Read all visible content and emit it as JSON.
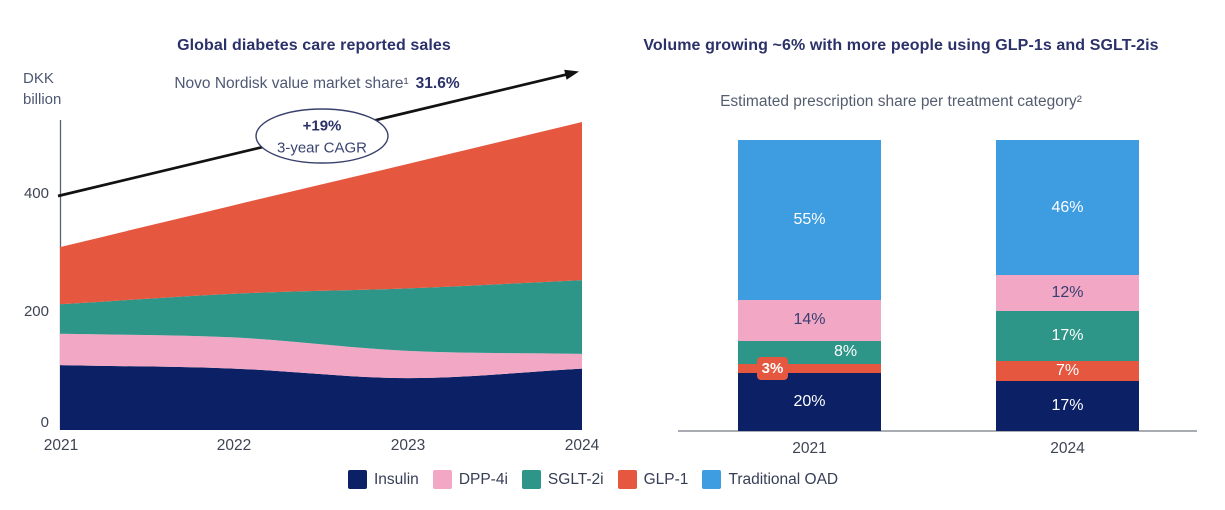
{
  "chart_data": [
    {
      "id": "diabetes-sales-area",
      "type": "area",
      "stacked": true,
      "title": "Global diabetes care reported sales",
      "ylabel_lines": [
        "DKK",
        "billion"
      ],
      "x": [
        "2021",
        "2022",
        "2023",
        "2024"
      ],
      "yticks": [
        "0",
        "200",
        "400"
      ],
      "ytick_values": [
        0,
        200,
        400
      ],
      "ylim": [
        0,
        560
      ],
      "grid": false,
      "legend_position": "bottom-shared",
      "series": [
        {
          "name": "Insulin",
          "color": "#0B2065",
          "values": [
            110,
            104,
            88,
            104
          ]
        },
        {
          "name": "DPP-4i",
          "color": "#F2A8C4",
          "values": [
            53,
            53,
            46,
            25
          ]
        },
        {
          "name": "SGLT-2i",
          "color": "#2E9589",
          "values": [
            50,
            74,
            106,
            125
          ]
        },
        {
          "name": "GLP-1",
          "color": "#E5573E",
          "values": [
            97,
            150,
            211,
            268
          ]
        }
      ],
      "totals_dkk_bn": [
        310,
        381,
        451,
        522
      ],
      "annotations": {
        "trend_label_regular": "Novo Nordisk value market share¹",
        "trend_label_bold": "31.6%",
        "badge_top": "+19%",
        "badge_bottom": "3-year CAGR",
        "arrow_color": "#121212"
      }
    },
    {
      "id": "prescription-share-bars",
      "type": "bar",
      "stacked": true,
      "title": "Volume growing ~6% with more people using GLP-1s and SGLT-2is",
      "subtitle": "Estimated prescription share per treatment category²",
      "categories": [
        "2021",
        "2024"
      ],
      "unit": "%",
      "series": [
        {
          "name": "Insulin",
          "color": "#0B2065",
          "values": [
            20,
            17
          ],
          "labels": [
            "20%",
            "17%"
          ],
          "label_colors": [
            "#FFFFFF",
            "#FFFFFF"
          ]
        },
        {
          "name": "GLP-1",
          "color": "#E5573E",
          "values": [
            3,
            7
          ],
          "labels": [
            "3%",
            "7%"
          ],
          "label_colors": [
            "#FFFFFF",
            "#FFFFFF"
          ],
          "label_style": [
            "callout",
            null
          ]
        },
        {
          "name": "SGLT-2i",
          "color": "#2E9589",
          "values": [
            8,
            17
          ],
          "labels": [
            "8%",
            "17%"
          ],
          "label_colors": [
            "#FFFFFF",
            "#FFFFFF"
          ],
          "label_dx": [
            36,
            0
          ]
        },
        {
          "name": "DPP-4i",
          "color": "#F2A8C4",
          "values": [
            14,
            12
          ],
          "labels": [
            "14%",
            "12%"
          ],
          "label_colors": [
            "#383E72",
            "#383E72"
          ]
        },
        {
          "name": "Traditional OAD",
          "color": "#3E9CE1",
          "values": [
            55,
            46
          ],
          "labels": [
            "55%",
            "46%"
          ],
          "label_colors": [
            "#FFFFFF",
            "#FFFFFF"
          ]
        }
      ]
    }
  ],
  "legend": {
    "items": [
      {
        "label": "Insulin",
        "color": "#0B2065"
      },
      {
        "label": "DPP-4i",
        "color": "#F2A8C4"
      },
      {
        "label": "SGLT-2i",
        "color": "#2E9589"
      },
      {
        "label": "GLP-1",
        "color": "#E5573E"
      },
      {
        "label": "Traditional OAD",
        "color": "#3E9CE1"
      }
    ]
  }
}
